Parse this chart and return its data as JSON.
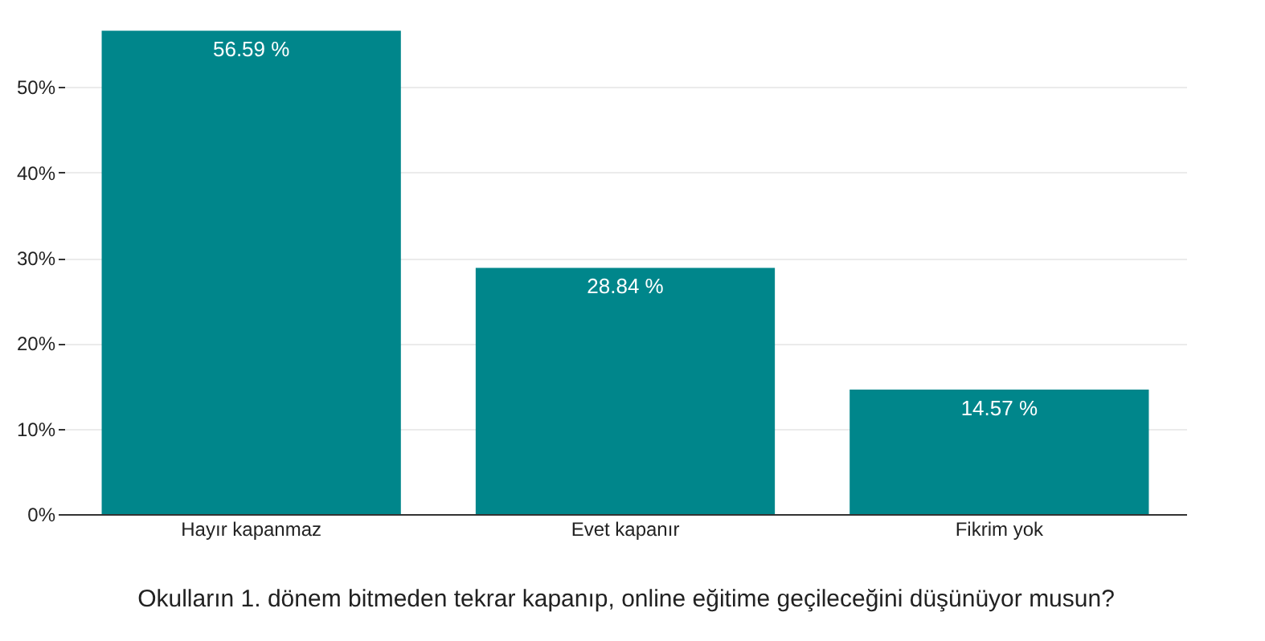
{
  "chart_data": {
    "type": "bar",
    "xlabel": "Okulların 1. dönem bitmeden tekrar kapanıp, online eğitime geçileceğini düşünüyor musun?",
    "categories": [
      "Hayır kapanmaz",
      "Evet kapanır",
      "Fikrim yok"
    ],
    "values": [
      56.59,
      28.84,
      14.57
    ],
    "value_labels": [
      "56.59 %",
      "28.84 %",
      "14.57 %"
    ],
    "color": "#00868b",
    "ylim": [
      0,
      57
    ],
    "yticks": [
      {
        "value": 0,
        "label": "0%"
      },
      {
        "value": 10,
        "label": "10%"
      },
      {
        "value": 20,
        "label": "20%"
      },
      {
        "value": 30,
        "label": "30%"
      },
      {
        "value": 40,
        "label": "40%"
      },
      {
        "value": 50,
        "label": "50%"
      }
    ],
    "grid": "y"
  }
}
